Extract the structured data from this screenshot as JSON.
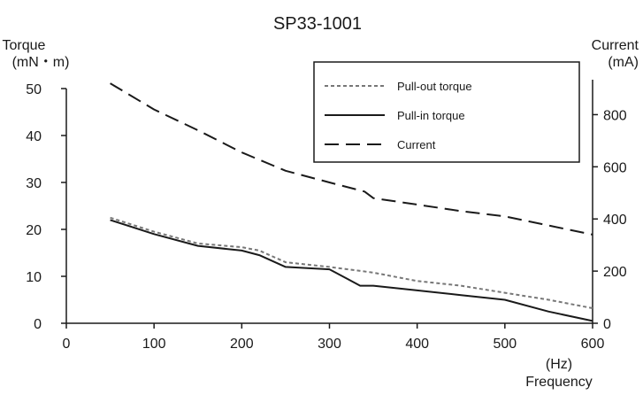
{
  "chart_data": {
    "type": "line",
    "title": "SP33-1001",
    "xlabel": "Frequency",
    "xunit": "(Hz)",
    "ylabel_left": "Torque",
    "ylabel_left_unit": "(mN・m)",
    "ylabel_right": "Current",
    "ylabel_right_unit": "(mA)",
    "xlim": [
      0,
      600
    ],
    "ylim_left": [
      0,
      50
    ],
    "ylim_right": [
      0,
      900
    ],
    "x_ticks": [
      "0",
      "100",
      "200",
      "300",
      "400",
      "500",
      "600"
    ],
    "y_left_ticks": [
      "0",
      "10",
      "20",
      "30",
      "40",
      "50"
    ],
    "y_right_ticks": [
      "0",
      "200",
      "400",
      "600",
      "800"
    ],
    "grid": false,
    "legend_position": "top-right",
    "series": [
      {
        "name": "Pull-out torque",
        "axis": "left",
        "style": "dotted",
        "color": "#777777",
        "x": [
          50,
          100,
          150,
          200,
          220,
          250,
          300,
          350,
          400,
          450,
          500,
          550,
          600
        ],
        "y": [
          22.5,
          19.5,
          17,
          16.2,
          15.5,
          13,
          12,
          10.8,
          9,
          8,
          6.5,
          5,
          3.2
        ]
      },
      {
        "name": "Pull-in torque",
        "axis": "left",
        "style": "solid",
        "color": "#1a1a1a",
        "x": [
          50,
          100,
          150,
          200,
          220,
          250,
          300,
          320,
          335,
          350,
          400,
          450,
          500,
          550,
          600
        ],
        "y": [
          22,
          19,
          16.5,
          15.5,
          14.5,
          12,
          11.5,
          9.5,
          8,
          8,
          7,
          6,
          5,
          2.5,
          0.5
        ]
      },
      {
        "name": "Current",
        "axis": "right",
        "style": "dashed",
        "color": "#1a1a1a",
        "x": [
          50,
          100,
          150,
          200,
          250,
          300,
          340,
          350,
          400,
          450,
          500,
          550,
          600
        ],
        "y": [
          920,
          820,
          740,
          655,
          585,
          540,
          505,
          480,
          455,
          430,
          410,
          375,
          340
        ]
      }
    ]
  }
}
